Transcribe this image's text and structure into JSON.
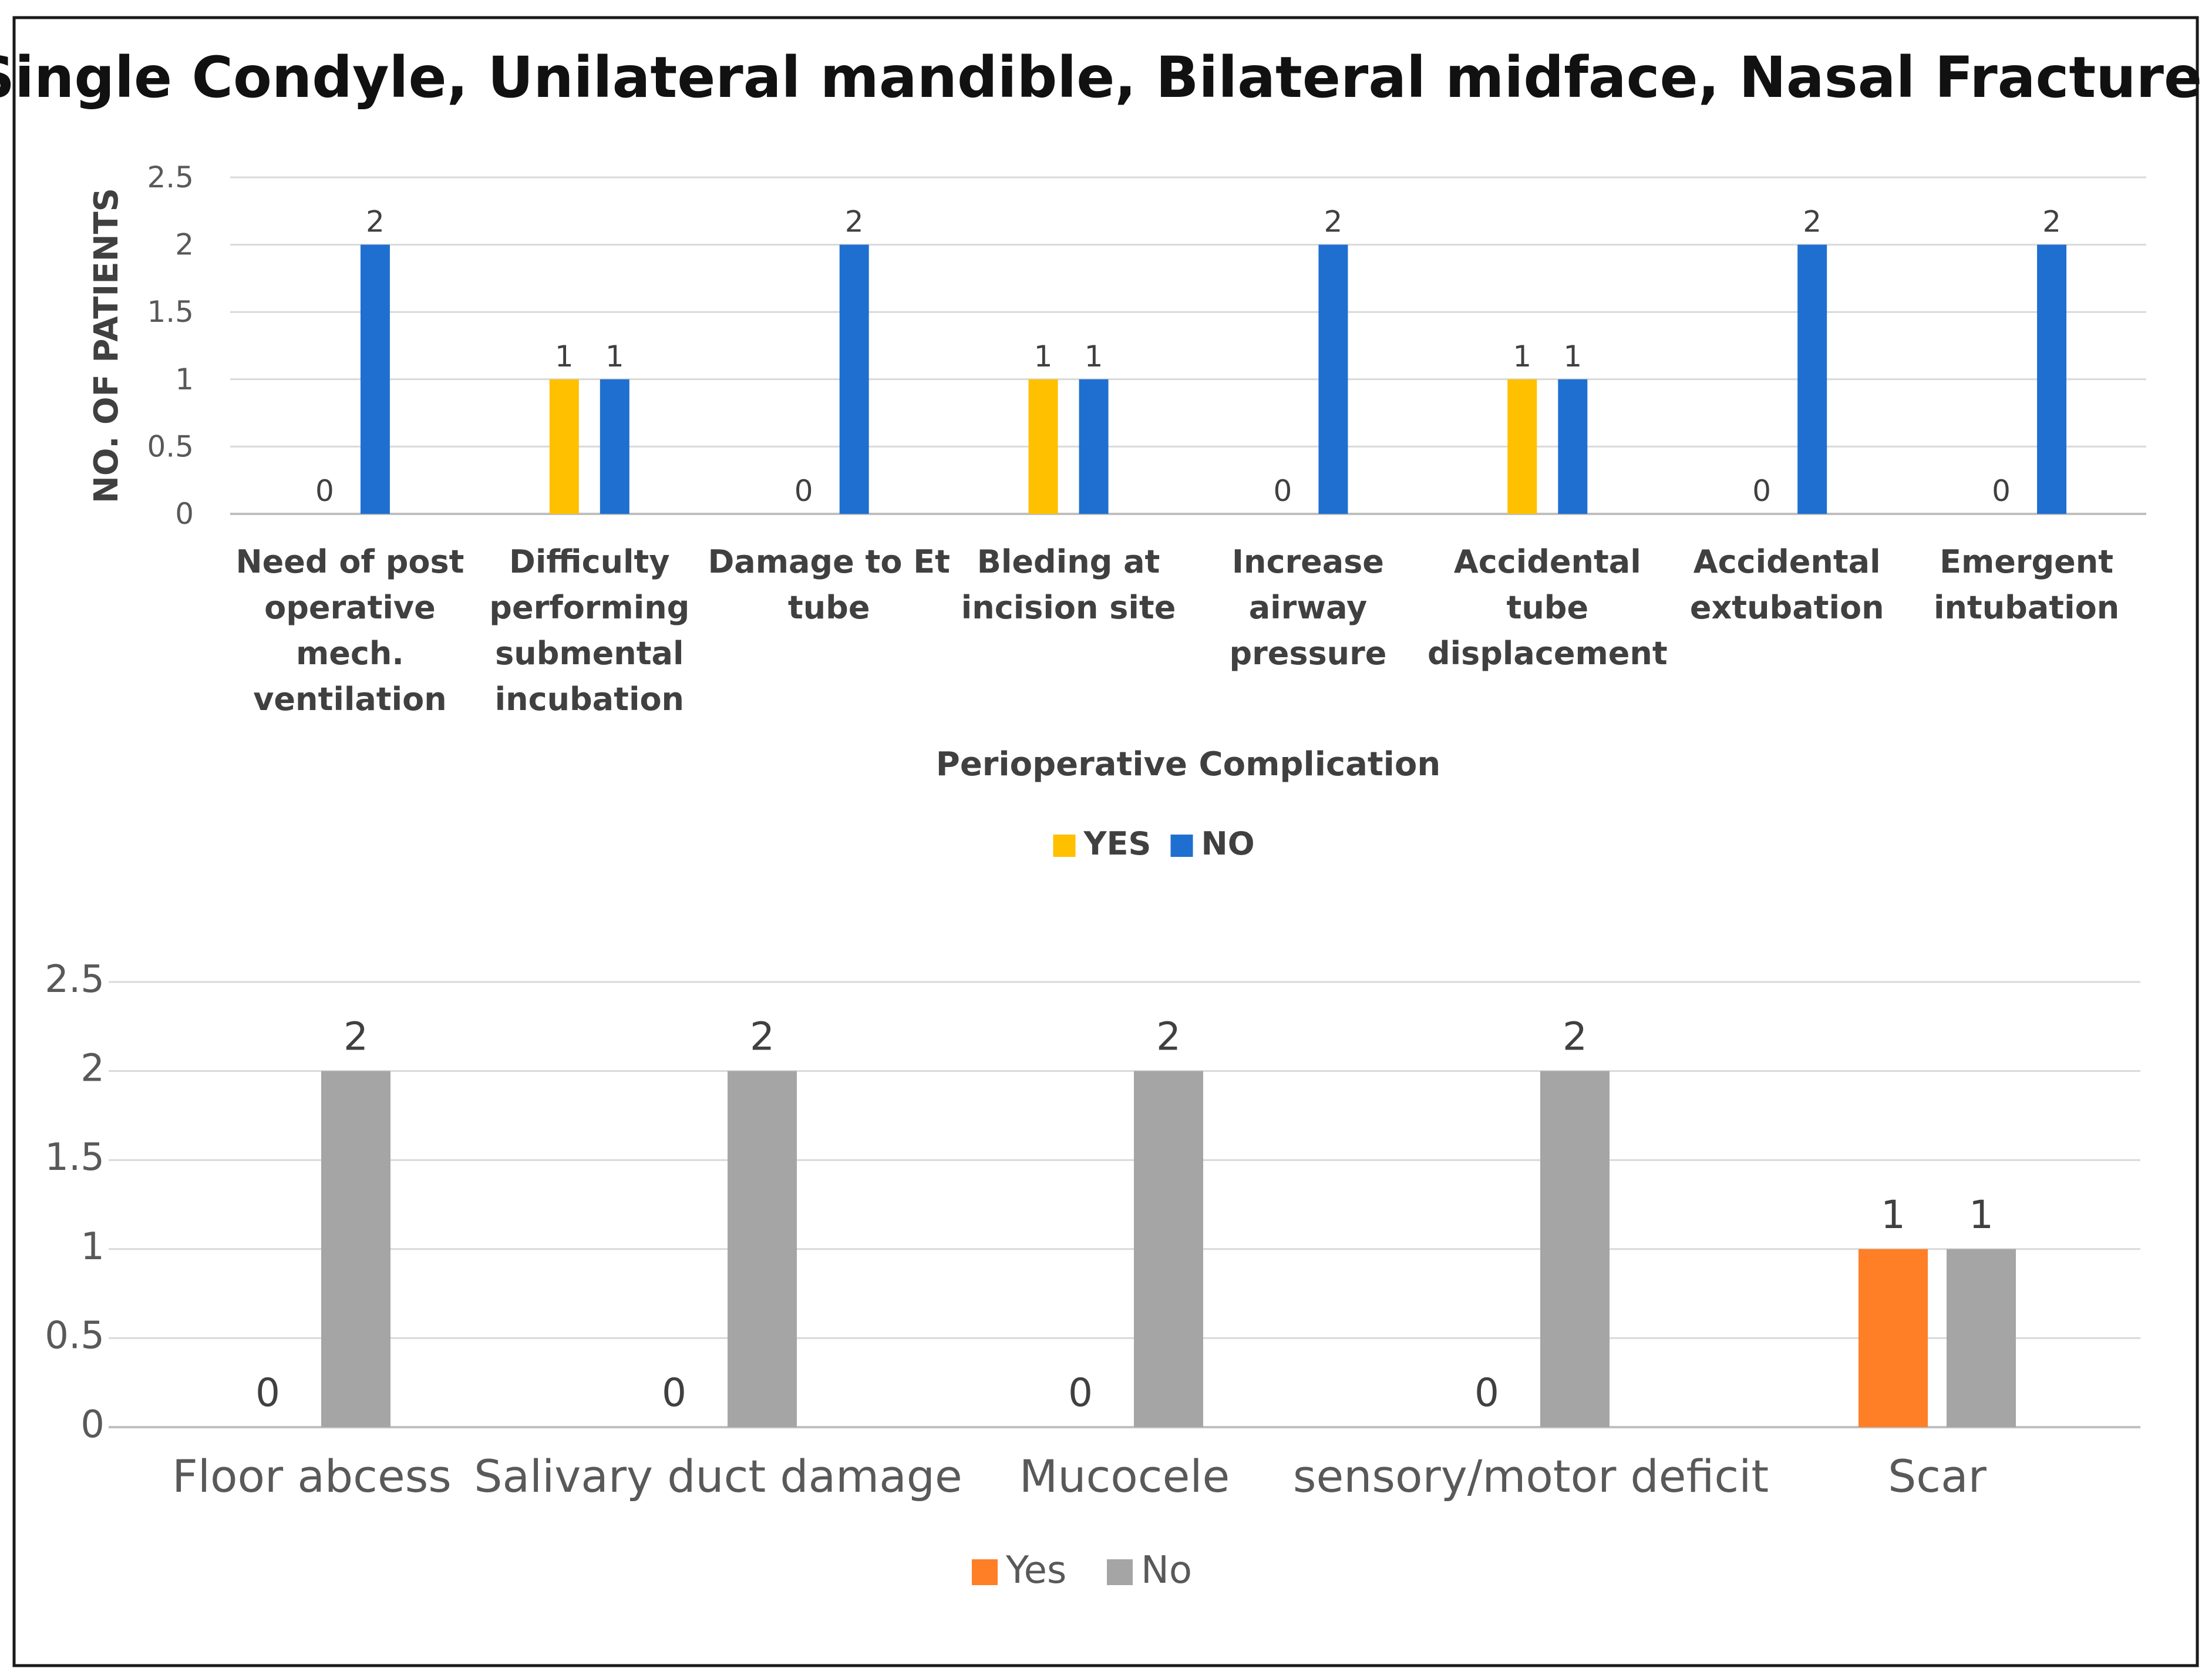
{
  "title": "Single Condyle, Unilateral mandible, Bilateral midface, Nasal Fracture",
  "chart_data": [
    {
      "type": "bar",
      "title": "Single Condyle, Unilateral mandible, Bilateral midface, Nasal Fracture",
      "xlabel": "Perioperative Complication",
      "ylabel": "NO. OF PATIENTS",
      "ylim": [
        0,
        2.5
      ],
      "yticks": [
        0,
        0.5,
        1,
        1.5,
        2,
        2.5
      ],
      "ytick_labels": [
        "0",
        "0.5",
        "1",
        "1.5",
        "2",
        "2.5"
      ],
      "grid": true,
      "legend_position": "bottom",
      "categories": [
        [
          "Need of post",
          "operative",
          "mech.",
          "ventilation"
        ],
        [
          "Difficulty",
          "performing",
          "submental",
          "incubation"
        ],
        [
          "Damage to Et",
          "tube"
        ],
        [
          "Bleding at",
          "incision site"
        ],
        [
          "Increase",
          "airway",
          "pressure"
        ],
        [
          "Accidental",
          "tube",
          "displacement"
        ],
        [
          "Accidental",
          "extubation"
        ],
        [
          "Emergent",
          "intubation"
        ]
      ],
      "series": [
        {
          "name": "YES",
          "color": "#FFC000",
          "values": [
            0,
            1,
            0,
            1,
            0,
            1,
            0,
            0
          ]
        },
        {
          "name": "NO",
          "color": "#1F6FD0",
          "values": [
            2,
            1,
            2,
            1,
            2,
            1,
            2,
            2
          ]
        }
      ]
    },
    {
      "type": "bar",
      "title": "",
      "xlabel": "",
      "ylabel": "",
      "ylim": [
        0,
        2.5
      ],
      "yticks": [
        0,
        0.5,
        1,
        1.5,
        2,
        2.5
      ],
      "ytick_labels": [
        "0",
        "0.5",
        "1",
        "1.5",
        "2",
        "2.5"
      ],
      "grid": true,
      "legend_position": "bottom",
      "categories": [
        "Floor abcess",
        "Salivary duct damage",
        "Mucocele",
        "sensory/motor deficit",
        "Scar"
      ],
      "series": [
        {
          "name": "Yes",
          "color": "#FF7F27",
          "values": [
            0,
            0,
            0,
            0,
            1
          ]
        },
        {
          "name": "No",
          "color": "#A5A5A5",
          "values": [
            2,
            2,
            2,
            2,
            1
          ]
        }
      ]
    }
  ]
}
